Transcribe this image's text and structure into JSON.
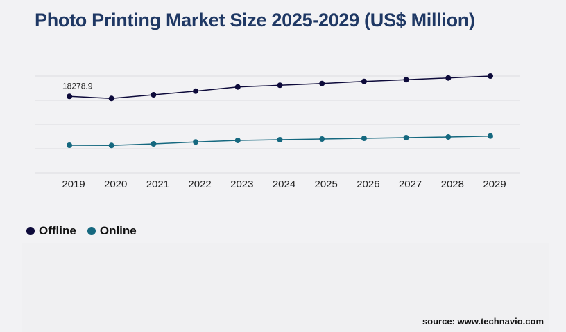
{
  "title": "Photo Printing Market Size 2025-2029 (US$ Million)",
  "source": "source: www.technavio.com",
  "chart_data": {
    "type": "line",
    "title": "Photo Printing Market Size 2025-2029 (US$ Million)",
    "xlabel": "",
    "ylabel": "",
    "categories": [
      "2019",
      "2020",
      "2021",
      "2022",
      "2023",
      "2024",
      "2025",
      "2026",
      "2027",
      "2028",
      "2029"
    ],
    "ylim": [
      0,
      23117
    ],
    "grid": true,
    "legend_position": "bottom-left",
    "series": [
      {
        "name": "Offline",
        "color": "#0d0a3a",
        "values": [
          18278.9,
          17784,
          18657,
          19532,
          20523,
          20919,
          21348,
          21844,
          22240,
          22670,
          23115
        ]
      },
      {
        "name": "Online",
        "color": "#15687f",
        "values": [
          6605,
          6555,
          6935,
          7380,
          7760,
          7926,
          8091,
          8256,
          8421,
          8586,
          8801
        ]
      }
    ],
    "annotations": [
      "18278.9"
    ]
  }
}
